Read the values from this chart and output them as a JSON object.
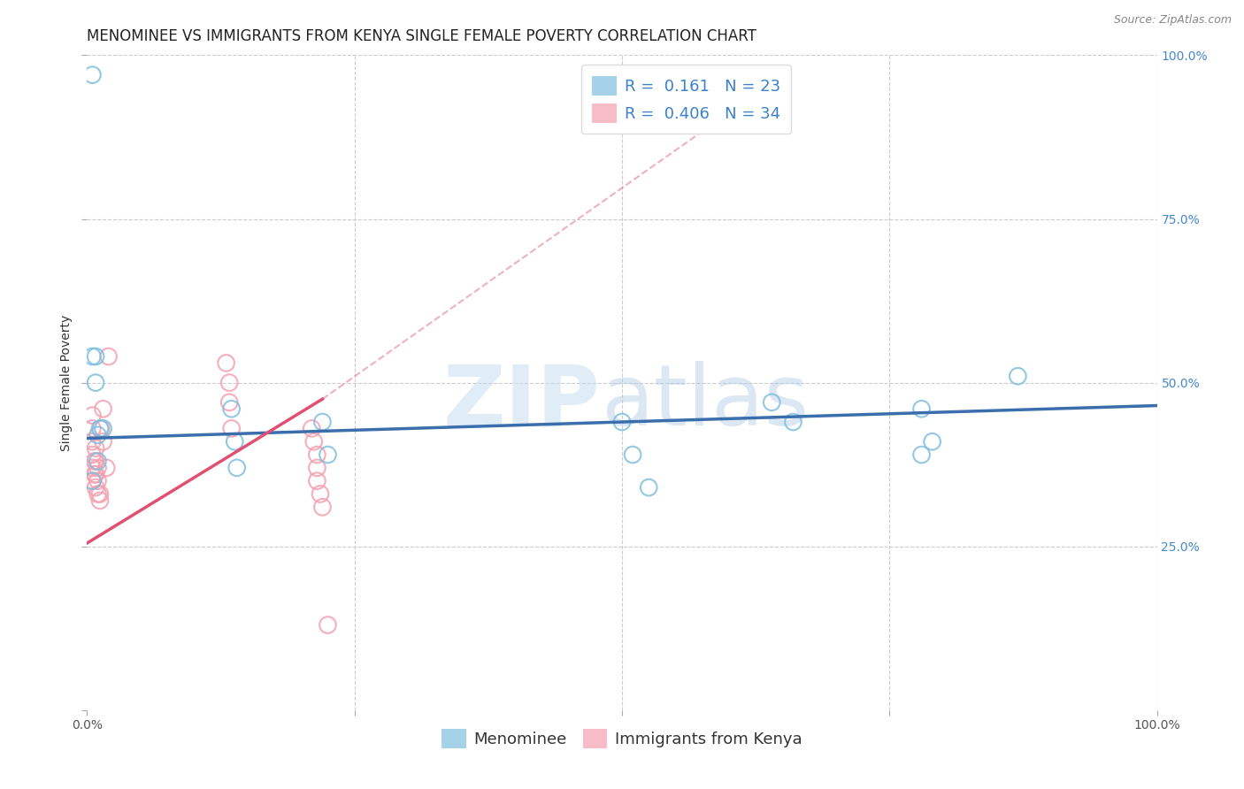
{
  "title": "MENOMINEE VS IMMIGRANTS FROM KENYA SINGLE FEMALE POVERTY CORRELATION CHART",
  "source": "Source: ZipAtlas.com",
  "ylabel": "Single Female Poverty",
  "r_blue": 0.161,
  "n_blue": 23,
  "r_pink": 0.406,
  "n_pink": 34,
  "blue_color": "#7fbfdf",
  "pink_color": "#f4a0b0",
  "blue_line_color": "#3a6eac",
  "pink_line_color": "#e05070",
  "blue_points_x": [
    0.005,
    0.008,
    0.008,
    0.01,
    0.01,
    0.012,
    0.015,
    0.005,
    0.135,
    0.138,
    0.14,
    0.22,
    0.225,
    0.5,
    0.51,
    0.525,
    0.64,
    0.66,
    0.78,
    0.79,
    0.87,
    0.005,
    0.78
  ],
  "blue_points_y": [
    0.54,
    0.54,
    0.5,
    0.42,
    0.38,
    0.43,
    0.43,
    0.97,
    0.46,
    0.41,
    0.37,
    0.44,
    0.39,
    0.44,
    0.39,
    0.34,
    0.47,
    0.44,
    0.46,
    0.41,
    0.51,
    0.35,
    0.39
  ],
  "pink_points_x": [
    0.005,
    0.005,
    0.005,
    0.005,
    0.005,
    0.005,
    0.007,
    0.007,
    0.008,
    0.008,
    0.008,
    0.008,
    0.01,
    0.01,
    0.01,
    0.012,
    0.012,
    0.013,
    0.015,
    0.015,
    0.018,
    0.02,
    0.13,
    0.133,
    0.133,
    0.135,
    0.21,
    0.212,
    0.215,
    0.215,
    0.215,
    0.218,
    0.22,
    0.225
  ],
  "pink_points_y": [
    0.35,
    0.37,
    0.39,
    0.41,
    0.43,
    0.45,
    0.36,
    0.38,
    0.34,
    0.36,
    0.38,
    0.4,
    0.33,
    0.35,
    0.37,
    0.32,
    0.33,
    0.43,
    0.41,
    0.46,
    0.37,
    0.54,
    0.53,
    0.5,
    0.47,
    0.43,
    0.43,
    0.41,
    0.39,
    0.37,
    0.35,
    0.33,
    0.31,
    0.13
  ],
  "watermark_zip": "ZIP",
  "watermark_atlas": "atlas",
  "legend_label_blue": "Menominee",
  "legend_label_pink": "Immigrants from Kenya",
  "xlim": [
    0,
    1.0
  ],
  "ylim": [
    0,
    1.0
  ],
  "grid_color": "#cccccc",
  "background_color": "#ffffff",
  "title_fontsize": 12,
  "axis_label_fontsize": 10,
  "tick_fontsize": 10,
  "legend_fontsize": 13
}
